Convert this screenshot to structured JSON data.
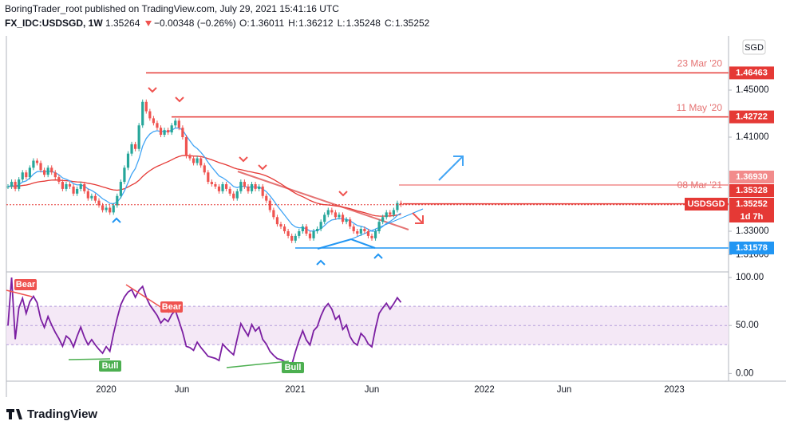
{
  "header": {
    "published": "BoringTrader_root published on TradingView.com, July 29, 2021 15:41:16 UTC",
    "symbol": "FX_IDC:USDSGD, 1W",
    "price": "1.35264",
    "change": "−0.00348 (−0.26%)",
    "ohlc": [
      {
        "key": "O:",
        "value": "1.36011"
      },
      {
        "key": "H:",
        "value": "1.36212"
      },
      {
        "key": "L:",
        "value": "1.35248"
      },
      {
        "key": "C:",
        "value": "1.35252"
      }
    ]
  },
  "currency": "SGD",
  "footer": "TradingView",
  "chart_data": {
    "type": "candlestick",
    "closes": [
      1.368,
      1.372,
      1.366,
      1.374,
      1.38,
      1.376,
      1.384,
      1.39,
      1.388,
      1.382,
      1.378,
      1.384,
      1.38,
      1.376,
      1.372,
      1.366,
      1.37,
      1.368,
      1.362,
      1.366,
      1.37,
      1.364,
      1.358,
      1.36,
      1.356,
      1.352,
      1.348,
      1.35,
      1.346,
      1.352,
      1.36,
      1.372,
      1.384,
      1.396,
      1.404,
      1.4,
      1.42,
      1.44,
      1.432,
      1.426,
      1.422,
      1.418,
      1.412,
      1.416,
      1.414,
      1.42,
      1.424,
      1.418,
      1.41,
      1.394,
      1.392,
      1.388,
      1.392,
      1.386,
      1.38,
      1.372,
      1.37,
      1.368,
      1.364,
      1.37,
      1.366,
      1.362,
      1.358,
      1.364,
      1.372,
      1.368,
      1.364,
      1.37,
      1.366,
      1.368,
      1.36,
      1.356,
      1.348,
      1.342,
      1.336,
      1.334,
      1.33,
      1.326,
      1.322,
      1.326,
      1.33,
      1.334,
      1.328,
      1.324,
      1.33,
      1.332,
      1.338,
      1.344,
      1.348,
      1.346,
      1.342,
      1.344,
      1.338,
      1.34,
      1.334,
      1.33,
      1.328,
      1.332,
      1.33,
      1.326,
      1.324,
      1.33,
      1.338,
      1.342,
      1.346,
      1.344,
      1.348,
      1.354,
      1.3526
    ],
    "ylim": [
      1.2961,
      1.4961
    ],
    "yticks": [
      {
        "value": 1.45,
        "label": "1.45000"
      },
      {
        "value": 1.41,
        "label": "1.41000"
      },
      {
        "value": 1.33,
        "label": "1.33000"
      },
      {
        "value": 1.31,
        "label": "1.31000"
      }
    ],
    "xticks": [
      "2020",
      "Jun",
      "2021",
      "Jun",
      "2022",
      "Jun",
      "2023"
    ],
    "levels": [
      {
        "value": 1.46463,
        "label": "1.46463",
        "date": "23 Mar '20",
        "color": "#e53935"
      },
      {
        "value": 1.42722,
        "label": "1.42722",
        "date": "11 May '20",
        "color": "#e53935"
      },
      {
        "value": 1.3693,
        "label": "1.36930",
        "color": "#f28b8b"
      },
      {
        "value": 1.35328,
        "label": "1.35328",
        "date": "08 Mar '21",
        "color": "#e53935"
      },
      {
        "value": 1.35252,
        "label": "1.35252",
        "color": "#e53935",
        "symbol": "USDSGD",
        "countdown": "1d 7h"
      },
      {
        "value": 1.31578,
        "label": "1.31578",
        "color": "#2196f3"
      }
    ],
    "rsi": {
      "ylim": [
        -8,
        105
      ],
      "yticks": [
        {
          "value": 100,
          "label": "100.00"
        },
        {
          "value": 50,
          "label": "50.00"
        },
        {
          "value": 0,
          "label": "0.00"
        }
      ],
      "band": [
        30,
        70
      ],
      "labels": [
        "Bear",
        "Bear",
        "Bull",
        "Bull"
      ]
    }
  }
}
